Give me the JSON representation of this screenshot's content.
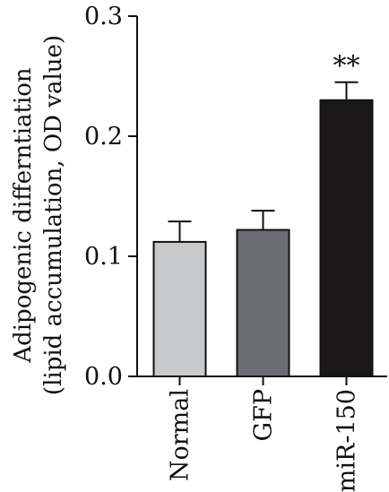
{
  "chart_data": {
    "type": "bar",
    "title": "",
    "xlabel": "",
    "ylabel_lines": [
      "Adipogenic differntiation",
      "(lipid accumulation, OD value)"
    ],
    "ylim": [
      0,
      0.3
    ],
    "yticks": [
      {
        "value": 0.0,
        "label": "0.0"
      },
      {
        "value": 0.1,
        "label": "0.1"
      },
      {
        "value": 0.2,
        "label": "0.2"
      },
      {
        "value": 0.3,
        "label": "0.3"
      }
    ],
    "categories": [
      "Normal",
      "GFP",
      "miR-150"
    ],
    "values": [
      0.112,
      0.122,
      0.23
    ],
    "errors": [
      0.017,
      0.016,
      0.015
    ],
    "bar_colors": [
      "#c8c9cb",
      "#6c6d71",
      "#1a1718"
    ],
    "annotations": [
      "",
      "",
      "**"
    ],
    "grid": false,
    "legend": "none"
  }
}
